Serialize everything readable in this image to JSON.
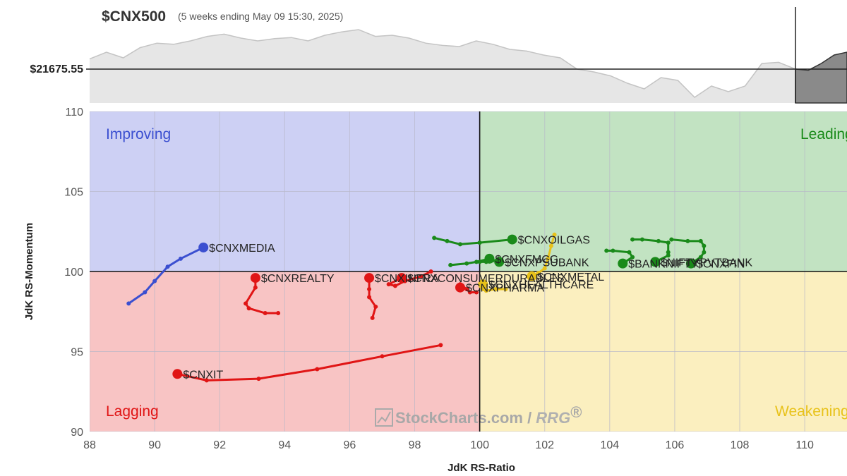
{
  "header": {
    "symbol": "$CNX500",
    "subtitle": "(5 weeks ending May 09 15:30, 2025)",
    "price_label": "$21675.55"
  },
  "chart_data": {
    "type": "scatter",
    "xlabel": "JdK RS-Ratio",
    "ylabel": "JdK RS-Momentum",
    "xlim": [
      88,
      111.3
    ],
    "ylim": [
      90,
      110
    ],
    "x_ticks": [
      "88",
      "90",
      "92",
      "94",
      "96",
      "98",
      "100",
      "102",
      "104",
      "106",
      "108",
      "110"
    ],
    "y_ticks": [
      "90",
      "95",
      "100",
      "105",
      "110"
    ],
    "grid": true,
    "quadrants": [
      {
        "name": "Improving",
        "color": "#3b4fd0",
        "fill": "#cdd0f4"
      },
      {
        "name": "Leading",
        "color": "#1a8a1a",
        "fill": "#c2e3c2"
      },
      {
        "name": "Weakening",
        "color": "#e8c21a",
        "fill": "#fbefbf"
      },
      {
        "name": "Lagging",
        "color": "#e01515",
        "fill": "#f8c4c4"
      }
    ],
    "series": [
      {
        "name": "$CNXMEDIA",
        "color": "#3b4fd0",
        "points": [
          [
            89.2,
            98.0
          ],
          [
            89.7,
            98.7
          ],
          [
            90.0,
            99.4
          ],
          [
            90.4,
            100.3
          ],
          [
            90.8,
            100.8
          ],
          [
            91.5,
            101.5
          ]
        ]
      },
      {
        "name": "$CNXREALTY",
        "color": "#e01515",
        "points": [
          [
            93.8,
            97.4
          ],
          [
            93.4,
            97.4
          ],
          [
            92.9,
            97.7
          ],
          [
            92.8,
            98.0
          ],
          [
            93.1,
            99.0
          ],
          [
            93.1,
            99.6
          ]
        ]
      },
      {
        "name": "$CNXIT",
        "color": "#e01515",
        "points": [
          [
            98.8,
            95.4
          ],
          [
            97.0,
            94.7
          ],
          [
            95.0,
            93.9
          ],
          [
            93.2,
            93.3
          ],
          [
            91.6,
            93.2
          ],
          [
            90.7,
            93.6
          ]
        ]
      },
      {
        "name": "$CNXINFRA",
        "color": "#e01515",
        "points": [
          [
            96.7,
            97.1
          ],
          [
            96.8,
            97.8
          ],
          [
            96.6,
            98.4
          ],
          [
            96.6,
            98.9
          ],
          [
            96.6,
            99.6
          ]
        ]
      },
      {
        "name": "$CNXCONSUMERDURABLES",
        "color": "#e01515",
        "points": [
          [
            98.5,
            100.0
          ],
          [
            98.2,
            99.7
          ],
          [
            97.7,
            99.4
          ],
          [
            97.4,
            99.1
          ],
          [
            97.2,
            99.2
          ],
          [
            97.6,
            99.6
          ]
        ]
      },
      {
        "name": "$CNXPHARMA",
        "color": "#e01515",
        "points": [
          [
            99.9,
            98.7
          ],
          [
            99.7,
            98.7
          ],
          [
            99.6,
            98.9
          ],
          [
            99.4,
            99.2
          ],
          [
            99.4,
            99.0
          ]
        ]
      },
      {
        "name": "$CNXHEALTHCARE",
        "color": "#e8c21a",
        "points": [
          [
            100.8,
            98.9
          ],
          [
            100.5,
            98.9
          ],
          [
            100.2,
            98.8
          ],
          [
            100.1,
            98.9
          ],
          [
            100.1,
            99.2
          ]
        ]
      },
      {
        "name": "$CNXMETAL",
        "color": "#e8c21a",
        "points": [
          [
            102.3,
            102.3
          ],
          [
            102.2,
            101.6
          ],
          [
            102.1,
            100.8
          ],
          [
            102.0,
            100.2
          ],
          [
            101.8,
            99.9
          ],
          [
            101.6,
            99.7
          ]
        ]
      },
      {
        "name": "$CNXOILGAS",
        "color": "#1a8a1a",
        "points": [
          [
            98.6,
            102.1
          ],
          [
            99.0,
            101.9
          ],
          [
            99.4,
            101.7
          ],
          [
            100.0,
            101.8
          ],
          [
            101.0,
            102.0
          ]
        ]
      },
      {
        "name": "$CNXFMCG",
        "color": "#1a8a1a",
        "points": [
          [
            99.1,
            100.4
          ],
          [
            99.6,
            100.5
          ],
          [
            99.9,
            100.6
          ],
          [
            100.3,
            100.8
          ]
        ]
      },
      {
        "name": "$CNXPSUBANK",
        "color": "#1a8a1a",
        "points": [
          [
            100.0,
            100.6
          ],
          [
            100.2,
            100.6
          ],
          [
            100.4,
            100.7
          ],
          [
            100.6,
            100.6
          ]
        ]
      },
      {
        "name": "$BANKNIFTY",
        "color": "#1a8a1a",
        "points": [
          [
            103.9,
            101.3
          ],
          [
            104.1,
            101.3
          ],
          [
            104.6,
            101.2
          ],
          [
            104.7,
            100.9
          ],
          [
            104.4,
            100.5
          ]
        ]
      },
      {
        "name": "$NIFTYPVTBANK",
        "color": "#1a8a1a",
        "points": [
          [
            104.7,
            102.0
          ],
          [
            105.0,
            102.0
          ],
          [
            105.5,
            101.9
          ],
          [
            105.8,
            101.8
          ],
          [
            105.8,
            101.2
          ],
          [
            105.8,
            101.0
          ],
          [
            105.4,
            100.6
          ]
        ]
      },
      {
        "name": "$CNXFIN",
        "color": "#1a8a1a",
        "points": [
          [
            105.9,
            102.0
          ],
          [
            106.4,
            101.9
          ],
          [
            106.8,
            101.9
          ],
          [
            106.9,
            101.6
          ],
          [
            106.9,
            101.2
          ],
          [
            106.8,
            100.9
          ],
          [
            106.5,
            100.5
          ]
        ]
      }
    ]
  },
  "benchmark": {
    "name": "$CNX500",
    "values": [
      0.48,
      0.6,
      0.5,
      0.68,
      0.76,
      0.74,
      0.8,
      0.88,
      0.92,
      0.85,
      0.8,
      0.84,
      0.86,
      0.8,
      0.9,
      0.96,
      1.0,
      0.88,
      0.9,
      0.85,
      0.76,
      0.72,
      0.7,
      0.8,
      0.74,
      0.65,
      0.62,
      0.55,
      0.5,
      0.3,
      0.25,
      0.18,
      0.05,
      -0.05,
      0.15,
      0.1,
      -0.2,
      0.0,
      -0.1,
      0.0,
      0.4,
      0.42,
      0.3
    ],
    "current_index_value": 0.3,
    "recent_values": [
      0.3,
      0.28,
      0.4,
      0.55,
      0.6
    ]
  },
  "watermark": {
    "brand": "StockCharts.com",
    "separator": " / ",
    "product": "RRG",
    "reg_mark": "®",
    "icon": "stockcharts-logo-icon"
  }
}
